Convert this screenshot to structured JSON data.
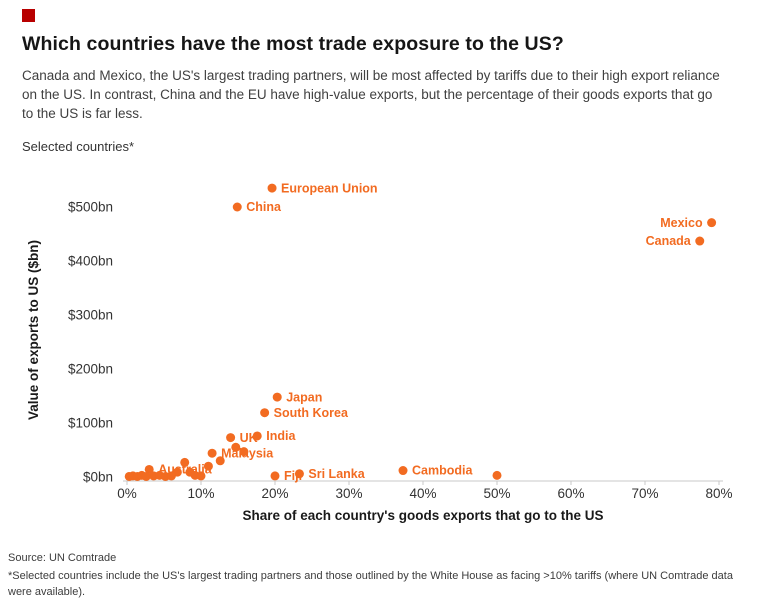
{
  "brand": {
    "logo_color": "#B80000"
  },
  "chart_data": {
    "type": "scatter",
    "title": "Which countries have the most trade exposure to the US?",
    "subtitle": "Canada and Mexico, the US's largest trading partners, will be most affected by tariffs due to their high export reliance on the US. In contrast, China and the EU have high-value exports, but the percentage of their goods exports that go to the US is far less.",
    "caption": "Selected countries*",
    "xlabel": "Share of each country's goods exports that go to the US",
    "ylabel": "Value of exports to US ($bn)",
    "xlim": [
      0,
      80
    ],
    "ylim": [
      0,
      560
    ],
    "grid": false,
    "legend": "none",
    "accent_color": "#F26B21",
    "x_tick_values": [
      0,
      10,
      20,
      30,
      40,
      50,
      60,
      70,
      80
    ],
    "x_tick_labels": [
      "0%",
      "10%",
      "20%",
      "30%",
      "40%",
      "50%",
      "60%",
      "70%",
      "80%"
    ],
    "y_tick_values": [
      0,
      100,
      200,
      300,
      400,
      500
    ],
    "y_tick_labels": [
      "$0bn",
      "$100bn",
      "$200bn",
      "$300bn",
      "$400bn",
      "$500bn"
    ],
    "points": [
      {
        "label": "European Union",
        "share_pct": 19.6,
        "value_bn": 535,
        "label_side": "right"
      },
      {
        "label": "China",
        "share_pct": 14.9,
        "value_bn": 500,
        "label_side": "right"
      },
      {
        "label": "Mexico",
        "share_pct": 79.0,
        "value_bn": 471,
        "label_side": "left"
      },
      {
        "label": "Canada",
        "share_pct": 77.4,
        "value_bn": 437,
        "label_side": "left"
      },
      {
        "label": "Japan",
        "share_pct": 20.3,
        "value_bn": 148,
        "label_side": "right"
      },
      {
        "label": "South Korea",
        "share_pct": 18.6,
        "value_bn": 119,
        "label_side": "right"
      },
      {
        "label": "India",
        "share_pct": 17.6,
        "value_bn": 76,
        "label_side": "right"
      },
      {
        "label": "UK",
        "share_pct": 14.0,
        "value_bn": 73,
        "label_side": "right"
      },
      {
        "label": "Malaysia",
        "share_pct": 11.5,
        "value_bn": 44,
        "label_side": "right"
      },
      {
        "label": "Australia",
        "share_pct": 3.0,
        "value_bn": 14,
        "label_side": "right"
      },
      {
        "label": "Fiji",
        "share_pct": 20.0,
        "value_bn": 2,
        "label_side": "right"
      },
      {
        "label": "Sri Lanka",
        "share_pct": 23.3,
        "value_bn": 6,
        "label_side": "right"
      },
      {
        "label": "Cambodia",
        "share_pct": 37.3,
        "value_bn": 12,
        "label_side": "right"
      },
      {
        "label": "",
        "share_pct": 14.7,
        "value_bn": 55
      },
      {
        "label": "",
        "share_pct": 15.8,
        "value_bn": 47
      },
      {
        "label": "",
        "share_pct": 12.6,
        "value_bn": 30
      },
      {
        "label": "",
        "share_pct": 7.8,
        "value_bn": 27
      },
      {
        "label": "",
        "share_pct": 11.0,
        "value_bn": 20
      },
      {
        "label": "",
        "share_pct": 8.5,
        "value_bn": 9
      },
      {
        "label": "",
        "share_pct": 6.8,
        "value_bn": 9
      },
      {
        "label": "",
        "share_pct": 0.3,
        "value_bn": 1
      },
      {
        "label": "",
        "share_pct": 0.8,
        "value_bn": 2
      },
      {
        "label": "",
        "share_pct": 1.4,
        "value_bn": 1
      },
      {
        "label": "",
        "share_pct": 2.0,
        "value_bn": 3
      },
      {
        "label": "",
        "share_pct": 2.6,
        "value_bn": 1
      },
      {
        "label": "",
        "share_pct": 3.6,
        "value_bn": 2
      },
      {
        "label": "",
        "share_pct": 4.4,
        "value_bn": 3
      },
      {
        "label": "",
        "share_pct": 5.2,
        "value_bn": 1
      },
      {
        "label": "",
        "share_pct": 6.0,
        "value_bn": 2
      },
      {
        "label": "",
        "share_pct": 9.2,
        "value_bn": 3
      },
      {
        "label": "",
        "share_pct": 10.0,
        "value_bn": 2
      },
      {
        "label": "",
        "share_pct": 50.0,
        "value_bn": 3
      }
    ]
  },
  "footer": {
    "source": "Source: UN Comtrade",
    "footnote": "*Selected countries include the US's largest trading partners and those outlined by the White House as facing >10% tariffs (where UN Comtrade data were available)."
  }
}
